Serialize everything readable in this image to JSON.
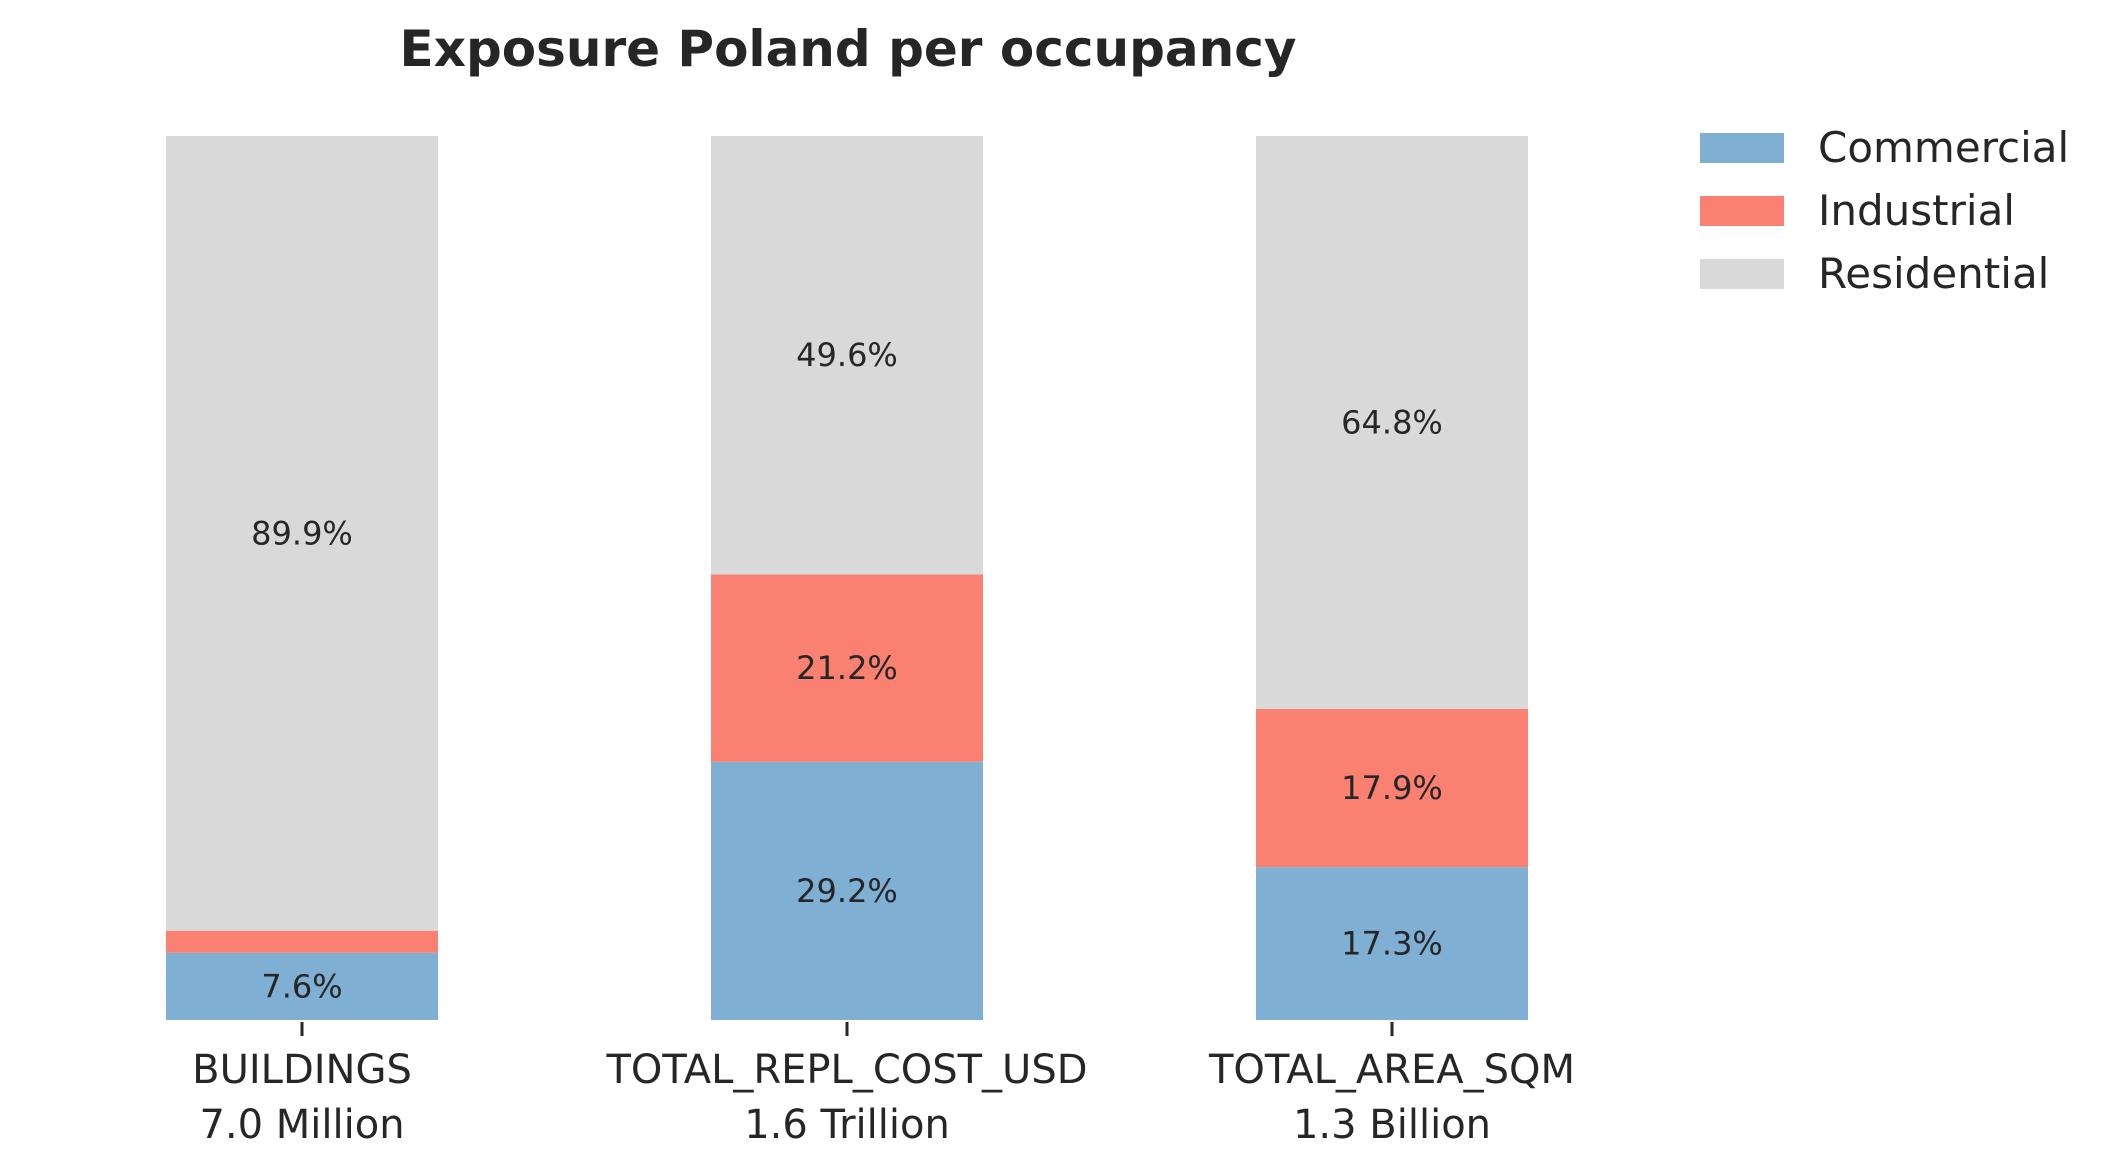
{
  "chart_data": {
    "type": "bar",
    "stacked": true,
    "normalized_percent": true,
    "title": "Exposure Poland per occupancy",
    "xlabel": "",
    "ylabel": "",
    "ylim": [
      0,
      100
    ],
    "grid": false,
    "legend_position": "top-right",
    "categories": [
      "BUILDINGS",
      "TOTAL_REPL_COST_USD",
      "TOTAL_AREA_SQM"
    ],
    "category_totals": [
      "7.0 Million",
      "1.6 Trillion",
      "1.3 Billion"
    ],
    "series": [
      {
        "name": "Commercial",
        "color": "#7fb0d4",
        "values": [
          7.6,
          29.2,
          17.3
        ],
        "labels": [
          "7.6%",
          "29.2%",
          "17.3%"
        ]
      },
      {
        "name": "Industrial",
        "color": "#fa8072",
        "values": [
          2.5,
          21.2,
          17.9
        ],
        "labels": [
          "",
          "21.2%",
          "17.9%"
        ]
      },
      {
        "name": "Residential",
        "color": "#d9d9d9",
        "values": [
          89.9,
          49.6,
          64.8
        ],
        "labels": [
          "89.9%",
          "49.6%",
          "64.8%"
        ]
      }
    ]
  }
}
